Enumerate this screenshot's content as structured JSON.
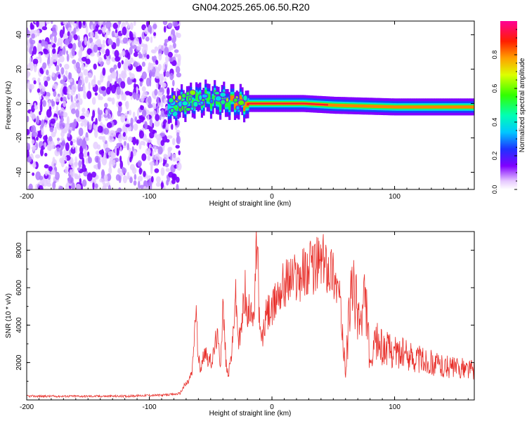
{
  "title": "GN04.2025.265.06.50.R20",
  "chart_data": [
    {
      "type": "heatmap",
      "xlabel": "Height of straight line (km)",
      "ylabel": "Frequency (Hz)",
      "xlim": [
        -200,
        165
      ],
      "ylim": [
        -50,
        48
      ],
      "xticks": [
        -200,
        -100,
        0,
        100
      ],
      "yticks": [
        -40,
        -20,
        0,
        20,
        40
      ],
      "noise_region": {
        "x": [
          -200,
          -80
        ],
        "description_level": 0.2
      },
      "ridge": [
        {
          "x": -85,
          "freq": -3,
          "amplitude": 0.45
        },
        {
          "x": -75,
          "freq": 0,
          "amplitude": 0.55
        },
        {
          "x": -65,
          "freq": 2,
          "amplitude": 0.6
        },
        {
          "x": -55,
          "freq": 3,
          "amplitude": 0.65
        },
        {
          "x": -45,
          "freq": 2,
          "amplitude": 0.7
        },
        {
          "x": -35,
          "freq": 1,
          "amplitude": 0.75
        },
        {
          "x": -25,
          "freq": 0,
          "amplitude": 0.85
        },
        {
          "x": -15,
          "freq": 0,
          "amplitude": 0.9
        },
        {
          "x": 0,
          "freq": 0,
          "amplitude": 1.0
        },
        {
          "x": 25,
          "freq": 0,
          "amplitude": 0.95
        },
        {
          "x": 50,
          "freq": -1,
          "amplitude": 0.85
        },
        {
          "x": 75,
          "freq": -1.5,
          "amplitude": 0.85
        },
        {
          "x": 100,
          "freq": -2,
          "amplitude": 0.85
        },
        {
          "x": 130,
          "freq": -2,
          "amplitude": 0.8
        },
        {
          "x": 165,
          "freq": -2,
          "amplitude": 0.8
        }
      ]
    },
    {
      "type": "line",
      "xlabel": "Height of straight line (km)",
      "ylabel": "SNR (10 * v/v)",
      "xlim": [
        -200,
        165
      ],
      "ylim": [
        0,
        9000
      ],
      "xticks": [
        -200,
        -100,
        0,
        100
      ],
      "yticks": [
        2000,
        4000,
        6000,
        8000
      ],
      "series": [
        {
          "name": "SNR",
          "x": [
            -200,
            -180,
            -160,
            -140,
            -120,
            -100,
            -90,
            -80,
            -75,
            -72,
            -68,
            -65,
            -62,
            -60,
            -57,
            -55,
            -52,
            -50,
            -48,
            -45,
            -42,
            -40,
            -37,
            -35,
            -32,
            -30,
            -27,
            -25,
            -22,
            -20,
            -17,
            -15,
            -12,
            -10,
            -8,
            -5,
            -2,
            0,
            5,
            10,
            15,
            20,
            25,
            30,
            35,
            40,
            45,
            50,
            55,
            58,
            60,
            62,
            65,
            70,
            73,
            75,
            78,
            80,
            85,
            90,
            100,
            110,
            120,
            130,
            140,
            150,
            165
          ],
          "y": [
            200,
            200,
            200,
            200,
            200,
            250,
            250,
            300,
            350,
            700,
            1000,
            1500,
            5000,
            2000,
            1800,
            2800,
            2200,
            2000,
            2300,
            3500,
            2000,
            5000,
            1500,
            1500,
            3000,
            5800,
            3000,
            3700,
            6100,
            4000,
            5500,
            3800,
            9000,
            3500,
            3200,
            4400,
            4800,
            4600,
            5800,
            6200,
            6500,
            6600,
            6800,
            7000,
            7200,
            7400,
            7300,
            6900,
            5600,
            3000,
            1600,
            3500,
            6000,
            4800,
            4000,
            5300,
            4400,
            1500,
            3200,
            2800,
            2600,
            2400,
            2200,
            2000,
            1800,
            1700,
            1650
          ]
        }
      ]
    }
  ],
  "colorbar": {
    "label": "Normalized spectral amplitude",
    "range": [
      0,
      1
    ],
    "ticks": [
      "0.0",
      "0.2",
      "0.4",
      "0.6",
      "0.8"
    ]
  },
  "colors": {
    "line": "#e8302b",
    "noise": "#7a00ff",
    "axis": "#000000"
  }
}
